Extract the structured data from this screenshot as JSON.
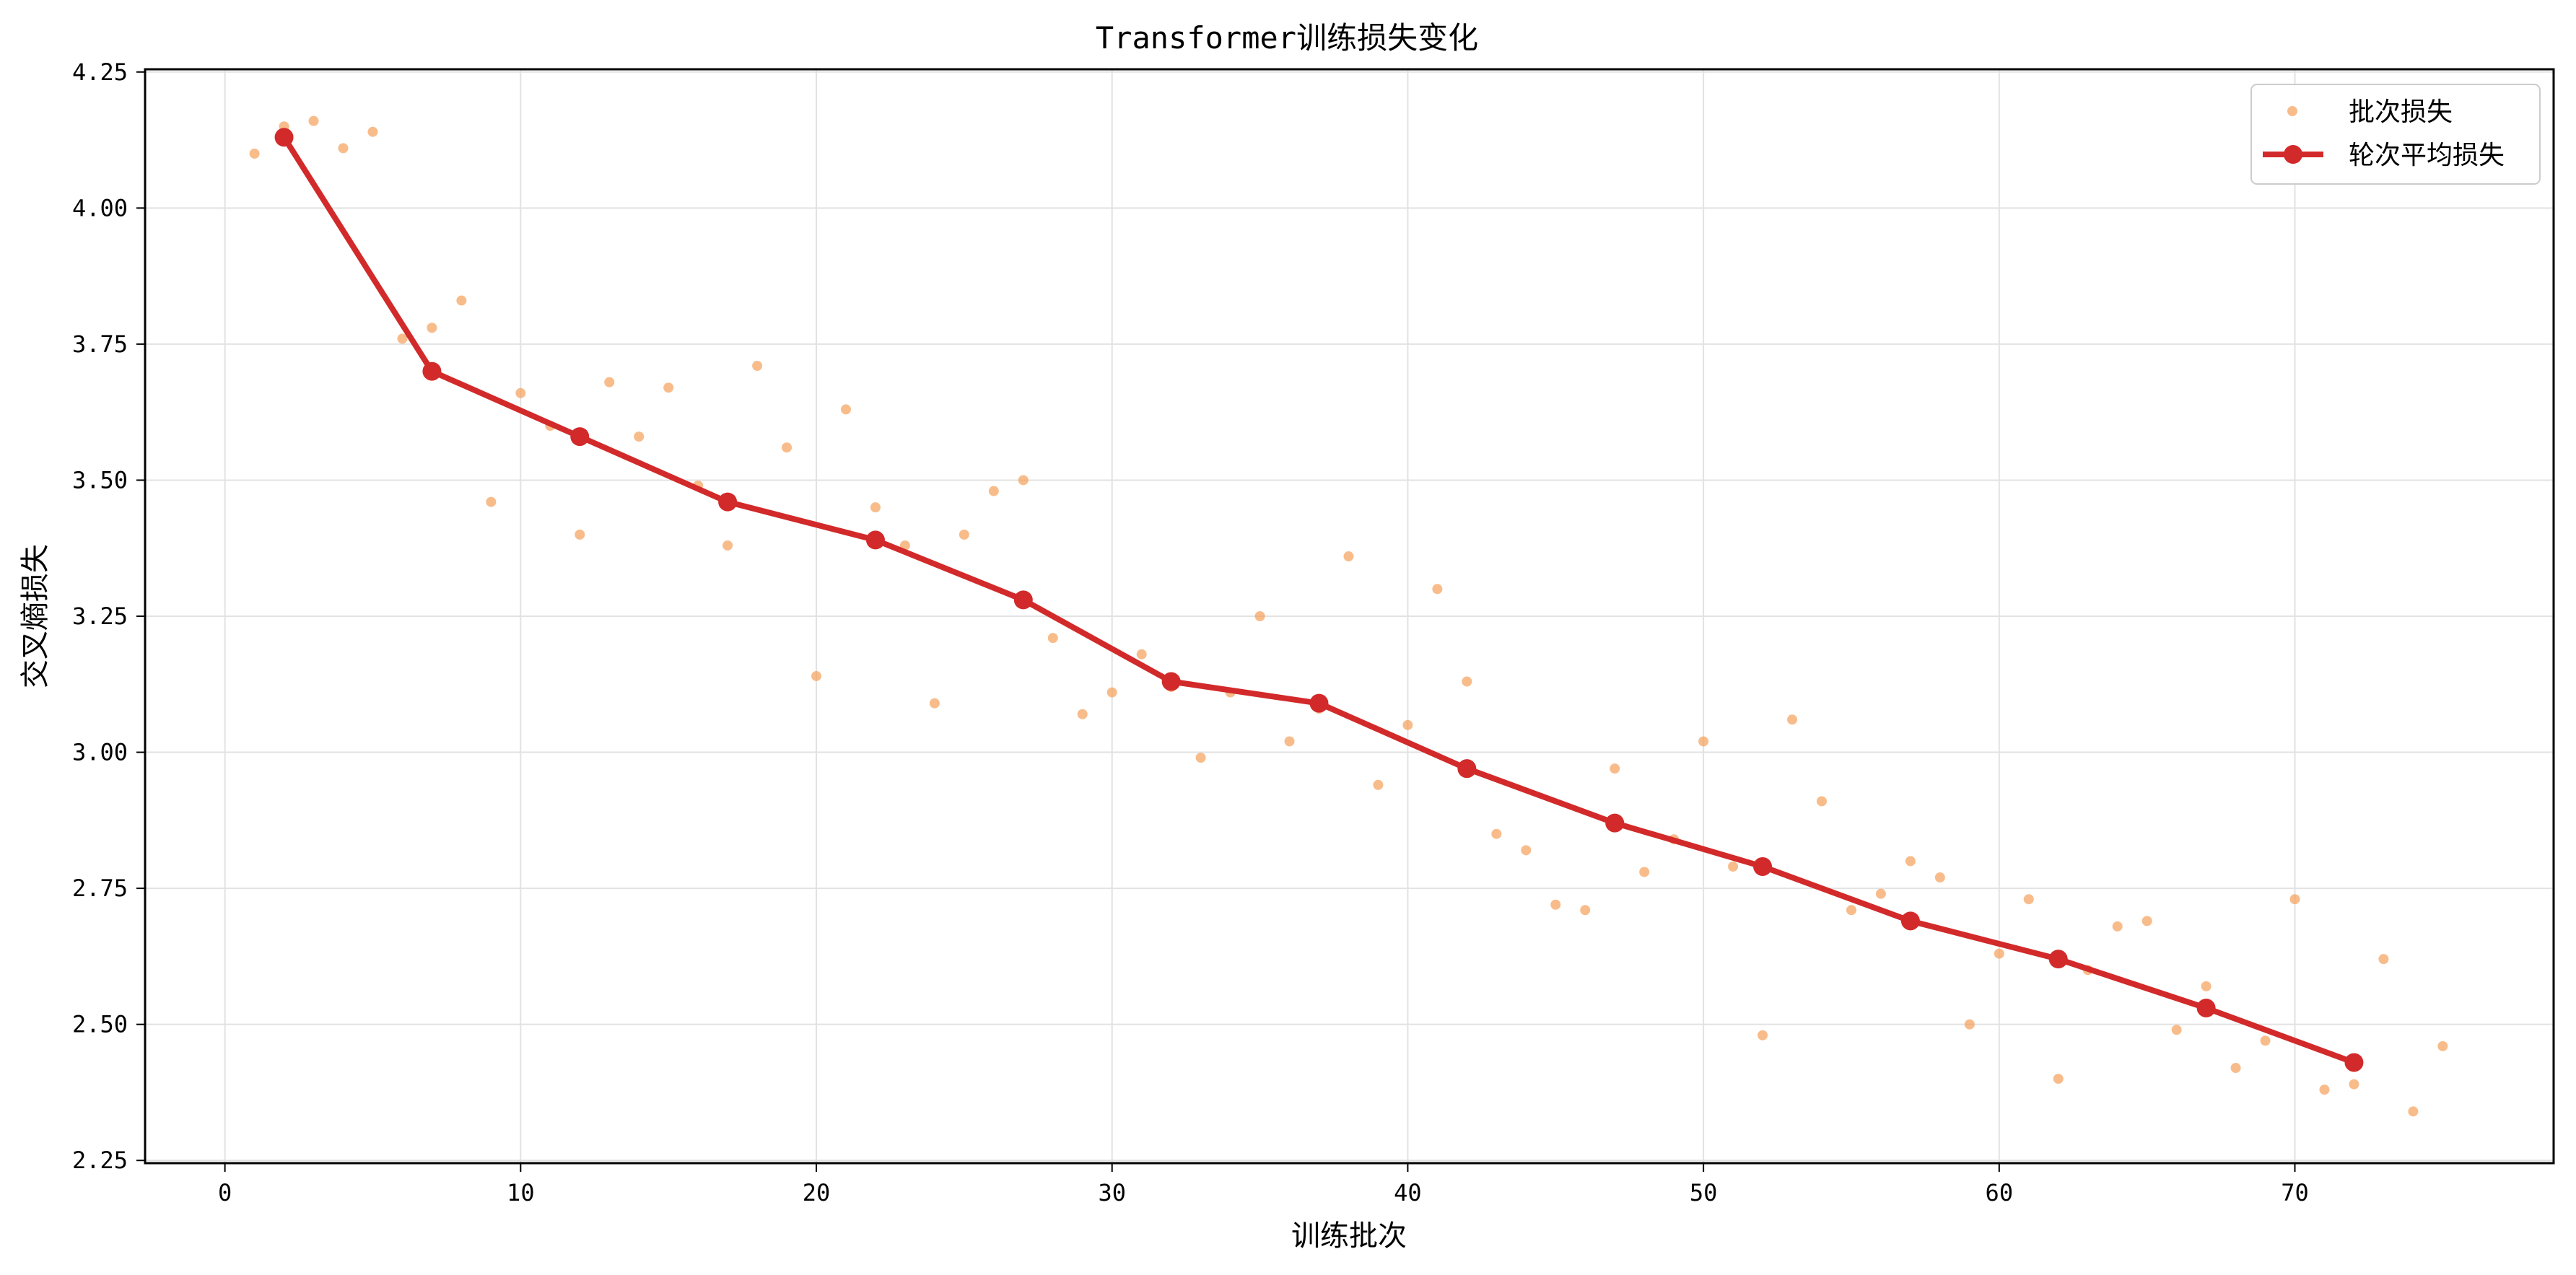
{
  "chart_data": {
    "type": "line",
    "title": "Transformer训练损失变化",
    "xlabel": "训练批次",
    "ylabel": "交叉熵损失",
    "xlim": [
      -2.7,
      78.75
    ],
    "ylim": [
      2.245,
      4.255
    ],
    "xticks": [
      0,
      10,
      20,
      30,
      40,
      50,
      60,
      70
    ],
    "yticks": [
      2.25,
      2.5,
      2.75,
      3.0,
      3.25,
      3.5,
      3.75,
      4.0,
      4.25
    ],
    "ytick_labels": [
      "2.25",
      "2.50",
      "2.75",
      "3.00",
      "3.25",
      "3.50",
      "3.75",
      "4.00",
      "4.25"
    ],
    "grid": true,
    "legend_position": "top-right",
    "colors": {
      "batch": "#f5a05a",
      "epoch": "#d22a2a",
      "grid": "#e2e2e2"
    },
    "series": [
      {
        "name": "批次损失",
        "kind": "scatter",
        "points": [
          [
            1,
            4.1
          ],
          [
            2,
            4.15
          ],
          [
            3,
            4.16
          ],
          [
            4,
            4.11
          ],
          [
            5,
            4.14
          ],
          [
            6,
            3.76
          ],
          [
            7,
            3.78
          ],
          [
            8,
            3.83
          ],
          [
            9,
            3.46
          ],
          [
            10,
            3.66
          ],
          [
            11,
            3.6
          ],
          [
            12,
            3.4
          ],
          [
            13,
            3.68
          ],
          [
            14,
            3.58
          ],
          [
            15,
            3.67
          ],
          [
            16,
            3.49
          ],
          [
            17,
            3.38
          ],
          [
            18,
            3.71
          ],
          [
            19,
            3.56
          ],
          [
            20,
            3.14
          ],
          [
            21,
            3.63
          ],
          [
            22,
            3.45
          ],
          [
            23,
            3.38
          ],
          [
            24,
            3.09
          ],
          [
            25,
            3.4
          ],
          [
            26,
            3.48
          ],
          [
            27,
            3.5
          ],
          [
            28,
            3.21
          ],
          [
            29,
            3.07
          ],
          [
            30,
            3.11
          ],
          [
            31,
            3.18
          ],
          [
            32,
            3.12
          ],
          [
            33,
            2.99
          ],
          [
            34,
            3.11
          ],
          [
            35,
            3.25
          ],
          [
            36,
            3.02
          ],
          [
            37,
            3.08
          ],
          [
            38,
            3.36
          ],
          [
            39,
            2.94
          ],
          [
            40,
            3.05
          ],
          [
            41,
            3.3
          ],
          [
            42,
            3.13
          ],
          [
            43,
            2.85
          ],
          [
            44,
            2.82
          ],
          [
            45,
            2.72
          ],
          [
            46,
            2.71
          ],
          [
            47,
            2.97
          ],
          [
            48,
            2.78
          ],
          [
            49,
            2.84
          ],
          [
            50,
            3.02
          ],
          [
            51,
            2.79
          ],
          [
            52,
            2.48
          ],
          [
            53,
            3.06
          ],
          [
            54,
            2.91
          ],
          [
            55,
            2.71
          ],
          [
            56,
            2.74
          ],
          [
            57,
            2.8
          ],
          [
            58,
            2.77
          ],
          [
            59,
            2.5
          ],
          [
            60,
            2.63
          ],
          [
            61,
            2.73
          ],
          [
            62,
            2.4
          ],
          [
            63,
            2.6
          ],
          [
            64,
            2.68
          ],
          [
            65,
            2.69
          ],
          [
            66,
            2.49
          ],
          [
            67,
            2.57
          ],
          [
            68,
            2.42
          ],
          [
            69,
            2.47
          ],
          [
            70,
            2.73
          ],
          [
            71,
            2.38
          ],
          [
            72,
            2.39
          ],
          [
            73,
            2.62
          ],
          [
            74,
            2.34
          ],
          [
            75,
            2.46
          ]
        ]
      },
      {
        "name": "轮次平均损失",
        "kind": "line",
        "points": [
          [
            2,
            4.13
          ],
          [
            7,
            3.7
          ],
          [
            12,
            3.58
          ],
          [
            17,
            3.46
          ],
          [
            22,
            3.39
          ],
          [
            27,
            3.28
          ],
          [
            32,
            3.13
          ],
          [
            37,
            3.09
          ],
          [
            42,
            2.97
          ],
          [
            47,
            2.87
          ],
          [
            52,
            2.79
          ],
          [
            57,
            2.69
          ],
          [
            62,
            2.62
          ],
          [
            67,
            2.53
          ],
          [
            72,
            2.43
          ]
        ]
      }
    ]
  }
}
